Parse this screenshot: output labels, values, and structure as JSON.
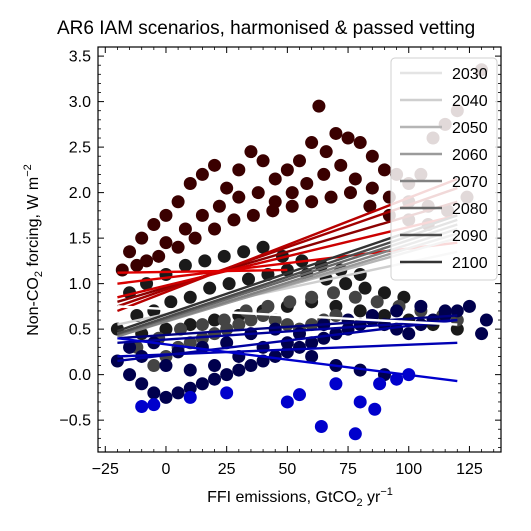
{
  "chart_data": {
    "type": "scatter",
    "title": "AR6 IAM scenarios, harmonised & passed vetting",
    "xlabel": "FFI emissions, GtCO",
    "xlabel_sub": "2",
    "xlabel_unit": " yr",
    "xlabel_sup": "−1",
    "ylabel": "Non-CO",
    "ylabel_sub": "2",
    "ylabel_unit": " forcing, W m",
    "ylabel_sup": "−2",
    "xlim": [
      -28,
      138
    ],
    "ylim": [
      -0.85,
      3.6
    ],
    "xticks": [
      {
        "v": -25,
        "label": "−25"
      },
      {
        "v": 0,
        "label": "0"
      },
      {
        "v": 25,
        "label": "25"
      },
      {
        "v": 50,
        "label": "50"
      },
      {
        "v": 75,
        "label": "75"
      },
      {
        "v": 100,
        "label": "100"
      },
      {
        "v": 125,
        "label": "125"
      }
    ],
    "yticks": [
      {
        "v": -0.5,
        "label": "−0.5"
      },
      {
        "v": 0.0,
        "label": "0.0"
      },
      {
        "v": 0.5,
        "label": "0.5"
      },
      {
        "v": 1.0,
        "label": "1.0"
      },
      {
        "v": 1.5,
        "label": "1.5"
      },
      {
        "v": 2.0,
        "label": "2.0"
      },
      {
        "v": 2.5,
        "label": "2.5"
      },
      {
        "v": 3.0,
        "label": "3.0"
      },
      {
        "v": 3.5,
        "label": "3.5"
      }
    ],
    "grid": false,
    "legend_position": "top-right",
    "scatter_groups": [
      {
        "color": "#3a0000",
        "points": [
          [
            -15,
            1.35
          ],
          [
            -10,
            1.5
          ],
          [
            -5,
            1.65
          ],
          [
            0,
            1.75
          ],
          [
            5,
            1.9
          ],
          [
            10,
            2.1
          ],
          [
            15,
            2.2
          ],
          [
            20,
            2.3
          ],
          [
            25,
            2.05
          ],
          [
            30,
            2.25
          ],
          [
            35,
            2.45
          ],
          [
            40,
            2.35
          ],
          [
            45,
            2.15
          ],
          [
            50,
            2.25
          ],
          [
            55,
            2.35
          ],
          [
            60,
            2.55
          ],
          [
            63,
            2.95
          ],
          [
            66,
            2.45
          ],
          [
            70,
            2.65
          ],
          [
            75,
            2.6
          ],
          [
            80,
            2.55
          ],
          [
            85,
            2.4
          ],
          [
            90,
            2.25
          ],
          [
            95,
            2.2
          ],
          [
            100,
            2.1
          ],
          [
            105,
            2.2
          ],
          [
            110,
            2.6
          ],
          [
            115,
            2.75
          ],
          [
            120,
            2.9
          ],
          [
            -8,
            1.25
          ],
          [
            0,
            1.45
          ],
          [
            8,
            1.6
          ],
          [
            15,
            1.75
          ],
          [
            22,
            1.85
          ],
          [
            30,
            1.95
          ],
          [
            38,
            2.0
          ],
          [
            45,
            1.9
          ],
          [
            52,
            2.0
          ],
          [
            58,
            2.1
          ],
          [
            65,
            2.2
          ],
          [
            72,
            2.3
          ],
          [
            78,
            2.15
          ],
          [
            85,
            2.05
          ],
          [
            92,
            1.95
          ],
          [
            100,
            1.9
          ],
          [
            108,
            1.85
          ],
          [
            -18,
            1.15
          ],
          [
            -12,
            1.2
          ],
          [
            -3,
            1.3
          ],
          [
            5,
            1.4
          ],
          [
            12,
            1.5
          ],
          [
            20,
            1.6
          ],
          [
            28,
            1.7
          ],
          [
            36,
            1.75
          ],
          [
            44,
            1.8
          ],
          [
            52,
            1.85
          ],
          [
            60,
            1.9
          ],
          [
            68,
            1.95
          ],
          [
            76,
            2.0
          ],
          [
            84,
            1.85
          ],
          [
            92,
            1.75
          ],
          [
            100,
            1.7
          ],
          [
            108,
            1.65
          ],
          [
            116,
            1.8
          ],
          [
            124,
            1.95
          ],
          [
            130,
            3.35
          ]
        ]
      },
      {
        "color": "#1a1a1a",
        "points": [
          [
            -20,
            0.5
          ],
          [
            -12,
            0.65
          ],
          [
            -5,
            0.7
          ],
          [
            2,
            0.8
          ],
          [
            10,
            0.85
          ],
          [
            18,
            0.95
          ],
          [
            26,
            1.0
          ],
          [
            34,
            1.05
          ],
          [
            42,
            1.1
          ],
          [
            50,
            1.15
          ],
          [
            58,
            1.1
          ],
          [
            66,
            1.05
          ],
          [
            74,
            1.0
          ],
          [
            82,
            0.95
          ],
          [
            90,
            0.9
          ],
          [
            98,
            0.85
          ],
          [
            -15,
            0.9
          ],
          [
            -8,
            1.0
          ],
          [
            0,
            1.1
          ],
          [
            8,
            1.2
          ],
          [
            16,
            1.25
          ],
          [
            24,
            1.3
          ],
          [
            32,
            1.35
          ],
          [
            40,
            1.4
          ],
          [
            48,
            1.3
          ],
          [
            56,
            1.25
          ],
          [
            64,
            1.2
          ],
          [
            72,
            1.15
          ],
          [
            80,
            1.1
          ],
          [
            -10,
            0.45
          ],
          [
            0,
            0.5
          ],
          [
            10,
            0.55
          ],
          [
            20,
            0.6
          ],
          [
            30,
            0.65
          ],
          [
            40,
            0.7
          ],
          [
            50,
            0.75
          ],
          [
            60,
            0.8
          ],
          [
            70,
            0.75
          ],
          [
            80,
            0.7
          ],
          [
            90,
            0.65
          ],
          [
            100,
            0.6
          ],
          [
            110,
            0.55
          ],
          [
            120,
            0.5
          ]
        ]
      },
      {
        "color": "#444444",
        "points": [
          [
            -5,
            0.1
          ],
          [
            0,
            0.2
          ],
          [
            5,
            0.3
          ],
          [
            10,
            0.35
          ],
          [
            15,
            0.4
          ],
          [
            20,
            0.45
          ],
          [
            25,
            0.5
          ],
          [
            30,
            0.55
          ],
          [
            35,
            0.6
          ],
          [
            40,
            0.65
          ],
          [
            45,
            0.6
          ],
          [
            50,
            0.55
          ],
          [
            55,
            0.5
          ],
          [
            60,
            0.55
          ],
          [
            65,
            0.6
          ],
          [
            70,
            0.65
          ],
          [
            -12,
            0.3
          ],
          [
            -3,
            0.4
          ],
          [
            6,
            0.5
          ],
          [
            15,
            0.55
          ],
          [
            24,
            0.6
          ],
          [
            33,
            0.7
          ],
          [
            42,
            0.75
          ],
          [
            51,
            0.8
          ],
          [
            60,
            0.85
          ],
          [
            69,
            0.9
          ],
          [
            78,
            0.85
          ],
          [
            87,
            0.8
          ],
          [
            96,
            0.75
          ],
          [
            105,
            0.7
          ],
          [
            114,
            0.65
          ],
          [
            120,
            0.6
          ]
        ]
      },
      {
        "color": "#00004d",
        "points": [
          [
            -20,
            0.15
          ],
          [
            -15,
            0.0
          ],
          [
            -10,
            -0.1
          ],
          [
            -5,
            -0.2
          ],
          [
            0,
            -0.25
          ],
          [
            5,
            -0.2
          ],
          [
            10,
            -0.15
          ],
          [
            15,
            -0.1
          ],
          [
            20,
            -0.05
          ],
          [
            25,
            0.0
          ],
          [
            30,
            0.05
          ],
          [
            35,
            0.1
          ],
          [
            40,
            0.15
          ],
          [
            45,
            0.2
          ],
          [
            50,
            0.25
          ],
          [
            55,
            0.3
          ],
          [
            60,
            0.35
          ],
          [
            65,
            0.4
          ],
          [
            70,
            0.45
          ],
          [
            75,
            0.5
          ],
          [
            80,
            0.55
          ],
          [
            85,
            0.6
          ],
          [
            90,
            0.55
          ],
          [
            95,
            0.5
          ],
          [
            100,
            0.45
          ],
          [
            105,
            0.55
          ],
          [
            110,
            0.6
          ],
          [
            115,
            0.65
          ],
          [
            120,
            0.7
          ],
          [
            125,
            0.75
          ],
          [
            132,
            0.6
          ],
          [
            130,
            0.45
          ],
          [
            -10,
            0.2
          ],
          [
            0,
            0.1
          ],
          [
            10,
            0.05
          ],
          [
            20,
            0.1
          ],
          [
            30,
            0.2
          ],
          [
            40,
            0.3
          ],
          [
            50,
            0.35
          ],
          [
            60,
            0.2
          ],
          [
            70,
            0.1
          ],
          [
            80,
            0.05
          ],
          [
            90,
            0.0
          ],
          [
            -15,
            0.3
          ],
          [
            -5,
            0.35
          ],
          [
            5,
            0.25
          ],
          [
            15,
            0.3
          ],
          [
            25,
            0.35
          ],
          [
            35,
            0.45
          ],
          [
            45,
            0.5
          ],
          [
            55,
            0.45
          ],
          [
            65,
            0.55
          ],
          [
            75,
            0.6
          ],
          [
            85,
            0.65
          ],
          [
            95,
            0.7
          ],
          [
            105,
            0.75
          ],
          [
            115,
            0.7
          ]
        ]
      },
      {
        "color": "#0000cc",
        "points": [
          [
            -10,
            -0.35
          ],
          [
            -5,
            -0.33
          ],
          [
            10,
            -0.25
          ],
          [
            25,
            -0.2
          ],
          [
            50,
            -0.3
          ],
          [
            55,
            -0.22
          ],
          [
            64,
            -0.57
          ],
          [
            70,
            -0.1
          ],
          [
            78,
            -0.65
          ],
          [
            80,
            -0.3
          ],
          [
            86,
            -0.38
          ],
          [
            88,
            -0.1
          ],
          [
            95,
            -0.05
          ],
          [
            100,
            0.0
          ]
        ]
      }
    ],
    "series": [
      {
        "name": "2030",
        "x": [
          -20,
          120
        ],
        "y": [
          0.75,
          0.55
        ],
        "color": "#ffffff",
        "legend_color": "#e4e4e4"
      },
      {
        "name": "2040",
        "x": [
          -20,
          120
        ],
        "y": [
          0.55,
          1.35
        ],
        "color": "#cfcfcf",
        "legend_color": "#cfcfcf"
      },
      {
        "name": "2050",
        "x": [
          -20,
          120
        ],
        "y": [
          0.45,
          1.5
        ],
        "color": "#b5b5b5",
        "legend_color": "#b5b5b5"
      },
      {
        "name": "2060",
        "x": [
          -20,
          120
        ],
        "y": [
          0.42,
          1.55
        ],
        "color": "#9b9b9b",
        "legend_color": "#9b9b9b"
      },
      {
        "name": "2070",
        "x": [
          -20,
          120
        ],
        "y": [
          0.42,
          1.6
        ],
        "color": "#828282",
        "legend_color": "#828282"
      },
      {
        "name": "2080",
        "x": [
          -20,
          120
        ],
        "y": [
          0.44,
          1.65
        ],
        "color": "#686868",
        "legend_color": "#686868"
      },
      {
        "name": "2090",
        "x": [
          -20,
          120
        ],
        "y": [
          0.45,
          1.7
        ],
        "color": "#4c4c4c",
        "legend_color": "#4c4c4c"
      },
      {
        "name": "2100",
        "x": [
          -20,
          120
        ],
        "y": [
          0.48,
          1.75
        ],
        "color": "#333333",
        "legend_color": "#333333"
      }
    ],
    "extra_lines": [
      {
        "x": [
          -20,
          120
        ],
        "y": [
          0.8,
          1.9
        ],
        "color": "#8b0000"
      },
      {
        "x": [
          -20,
          120
        ],
        "y": [
          0.75,
          2.05
        ],
        "color": "#a30000"
      },
      {
        "x": [
          -20,
          120
        ],
        "y": [
          0.7,
          2.15
        ],
        "color": "#b80000"
      },
      {
        "x": [
          -20,
          120
        ],
        "y": [
          0.85,
          1.75
        ],
        "color": "#cc0000"
      },
      {
        "x": [
          -20,
          120
        ],
        "y": [
          1.0,
          1.45
        ],
        "color": "#d80000"
      },
      {
        "x": [
          -20,
          50
        ],
        "y": [
          1.12,
          1.15
        ],
        "color": "#e00000"
      },
      {
        "x": [
          -20,
          120
        ],
        "y": [
          0.4,
          0.65
        ],
        "color": "#000080"
      },
      {
        "x": [
          -20,
          120
        ],
        "y": [
          0.35,
          0.6
        ],
        "color": "#000099"
      },
      {
        "x": [
          -20,
          120
        ],
        "y": [
          0.2,
          0.35
        ],
        "color": "#0000b3"
      },
      {
        "x": [
          -20,
          120
        ],
        "y": [
          0.15,
          0.6
        ],
        "color": "#0000a0"
      },
      {
        "x": [
          -20,
          120
        ],
        "y": [
          0.4,
          -0.07
        ],
        "color": "#0000cc"
      }
    ]
  }
}
